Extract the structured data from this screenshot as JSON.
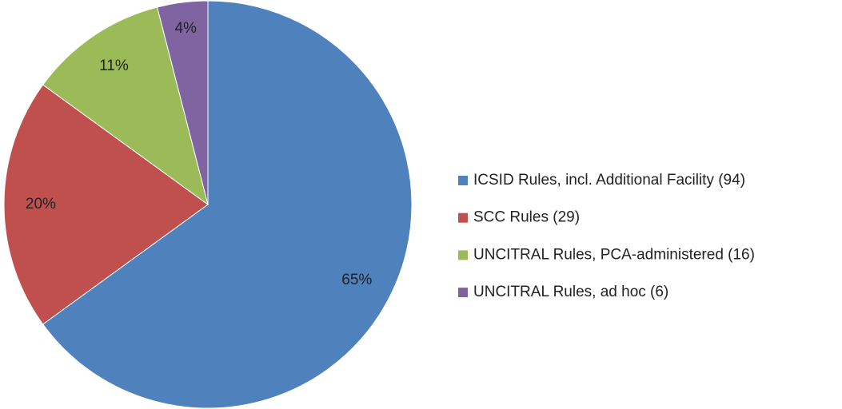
{
  "chart_data": {
    "type": "pie",
    "categories": [
      "ICSID Rules, incl. Additional Facility (94)",
      "SCC Rules (29)",
      "UNCITRAL Rules, PCA-administered (16)",
      "UNCITRAL Rules, ad hoc (6)"
    ],
    "values": [
      65,
      20,
      11,
      4
    ],
    "value_labels": [
      "65%",
      "20%",
      "11%",
      "4%"
    ],
    "colors": [
      "#4f81bd",
      "#c0504d",
      "#9bbb59",
      "#8064a2"
    ],
    "legend": "right"
  }
}
